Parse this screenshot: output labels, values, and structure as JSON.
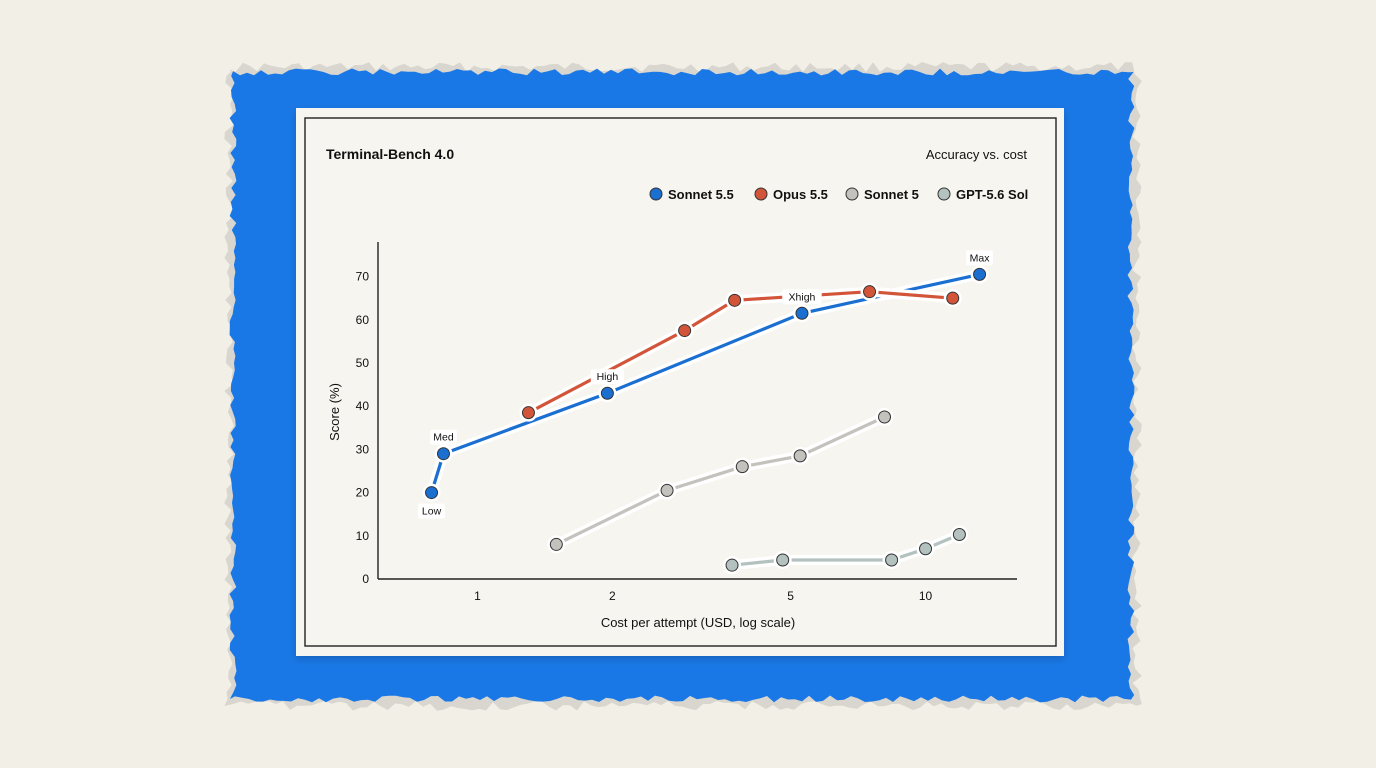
{
  "colors": {
    "background": "#f2efe7",
    "frame_blue": "#1a78e6",
    "paper": "#f7f5ef",
    "ink": "#111111"
  },
  "chart_data": {
    "type": "line",
    "title": "Terminal-Bench 4.0",
    "subtitle": "Accuracy vs. cost",
    "xlabel": "Cost per attempt (USD, log scale)",
    "ylabel": "Score (%)",
    "x_scale": "log",
    "xlim": [
      0.6,
      16
    ],
    "ylim": [
      0,
      78
    ],
    "x_ticks": [
      1,
      2,
      5,
      10
    ],
    "x_tick_labels": [
      "1",
      "2",
      "5",
      "10"
    ],
    "y_ticks": [
      0,
      10,
      20,
      30,
      40,
      50,
      60,
      70
    ],
    "y_tick_labels": [
      "0",
      "10",
      "20",
      "30",
      "40",
      "50",
      "60",
      "70"
    ],
    "grid": false,
    "legend_position": "top-right",
    "series": [
      {
        "name": "Sonnet 5.5",
        "color": "#1b6fd1",
        "x": [
          0.79,
          0.84,
          1.95,
          5.3,
          13.2
        ],
        "y": [
          20,
          29,
          43,
          61.5,
          70.5
        ],
        "point_labels": [
          "Low",
          "Med",
          "High",
          "Xhigh",
          "Max"
        ]
      },
      {
        "name": "Opus 5.5",
        "color": "#d2553a",
        "x": [
          1.3,
          2.9,
          3.75,
          7.5,
          11.5
        ],
        "y": [
          38.5,
          57.5,
          64.5,
          66.5,
          65
        ],
        "point_labels": [
          "",
          "",
          "",
          "",
          ""
        ]
      },
      {
        "name": "Sonnet 5",
        "color": "#c4c2bd",
        "x": [
          1.5,
          2.65,
          3.9,
          5.25,
          8.1
        ],
        "y": [
          8,
          20.5,
          26,
          28.5,
          37.5
        ],
        "point_labels": [
          "",
          "",
          "",
          "",
          ""
        ]
      },
      {
        "name": "GPT-5.6 Sol",
        "color": "#b3c2bf",
        "x": [
          3.7,
          4.8,
          8.4,
          10.0,
          11.9
        ],
        "y": [
          3.2,
          4.4,
          4.4,
          7.0,
          10.3
        ],
        "point_labels": [
          "",
          "",
          "",
          "",
          ""
        ]
      }
    ]
  }
}
